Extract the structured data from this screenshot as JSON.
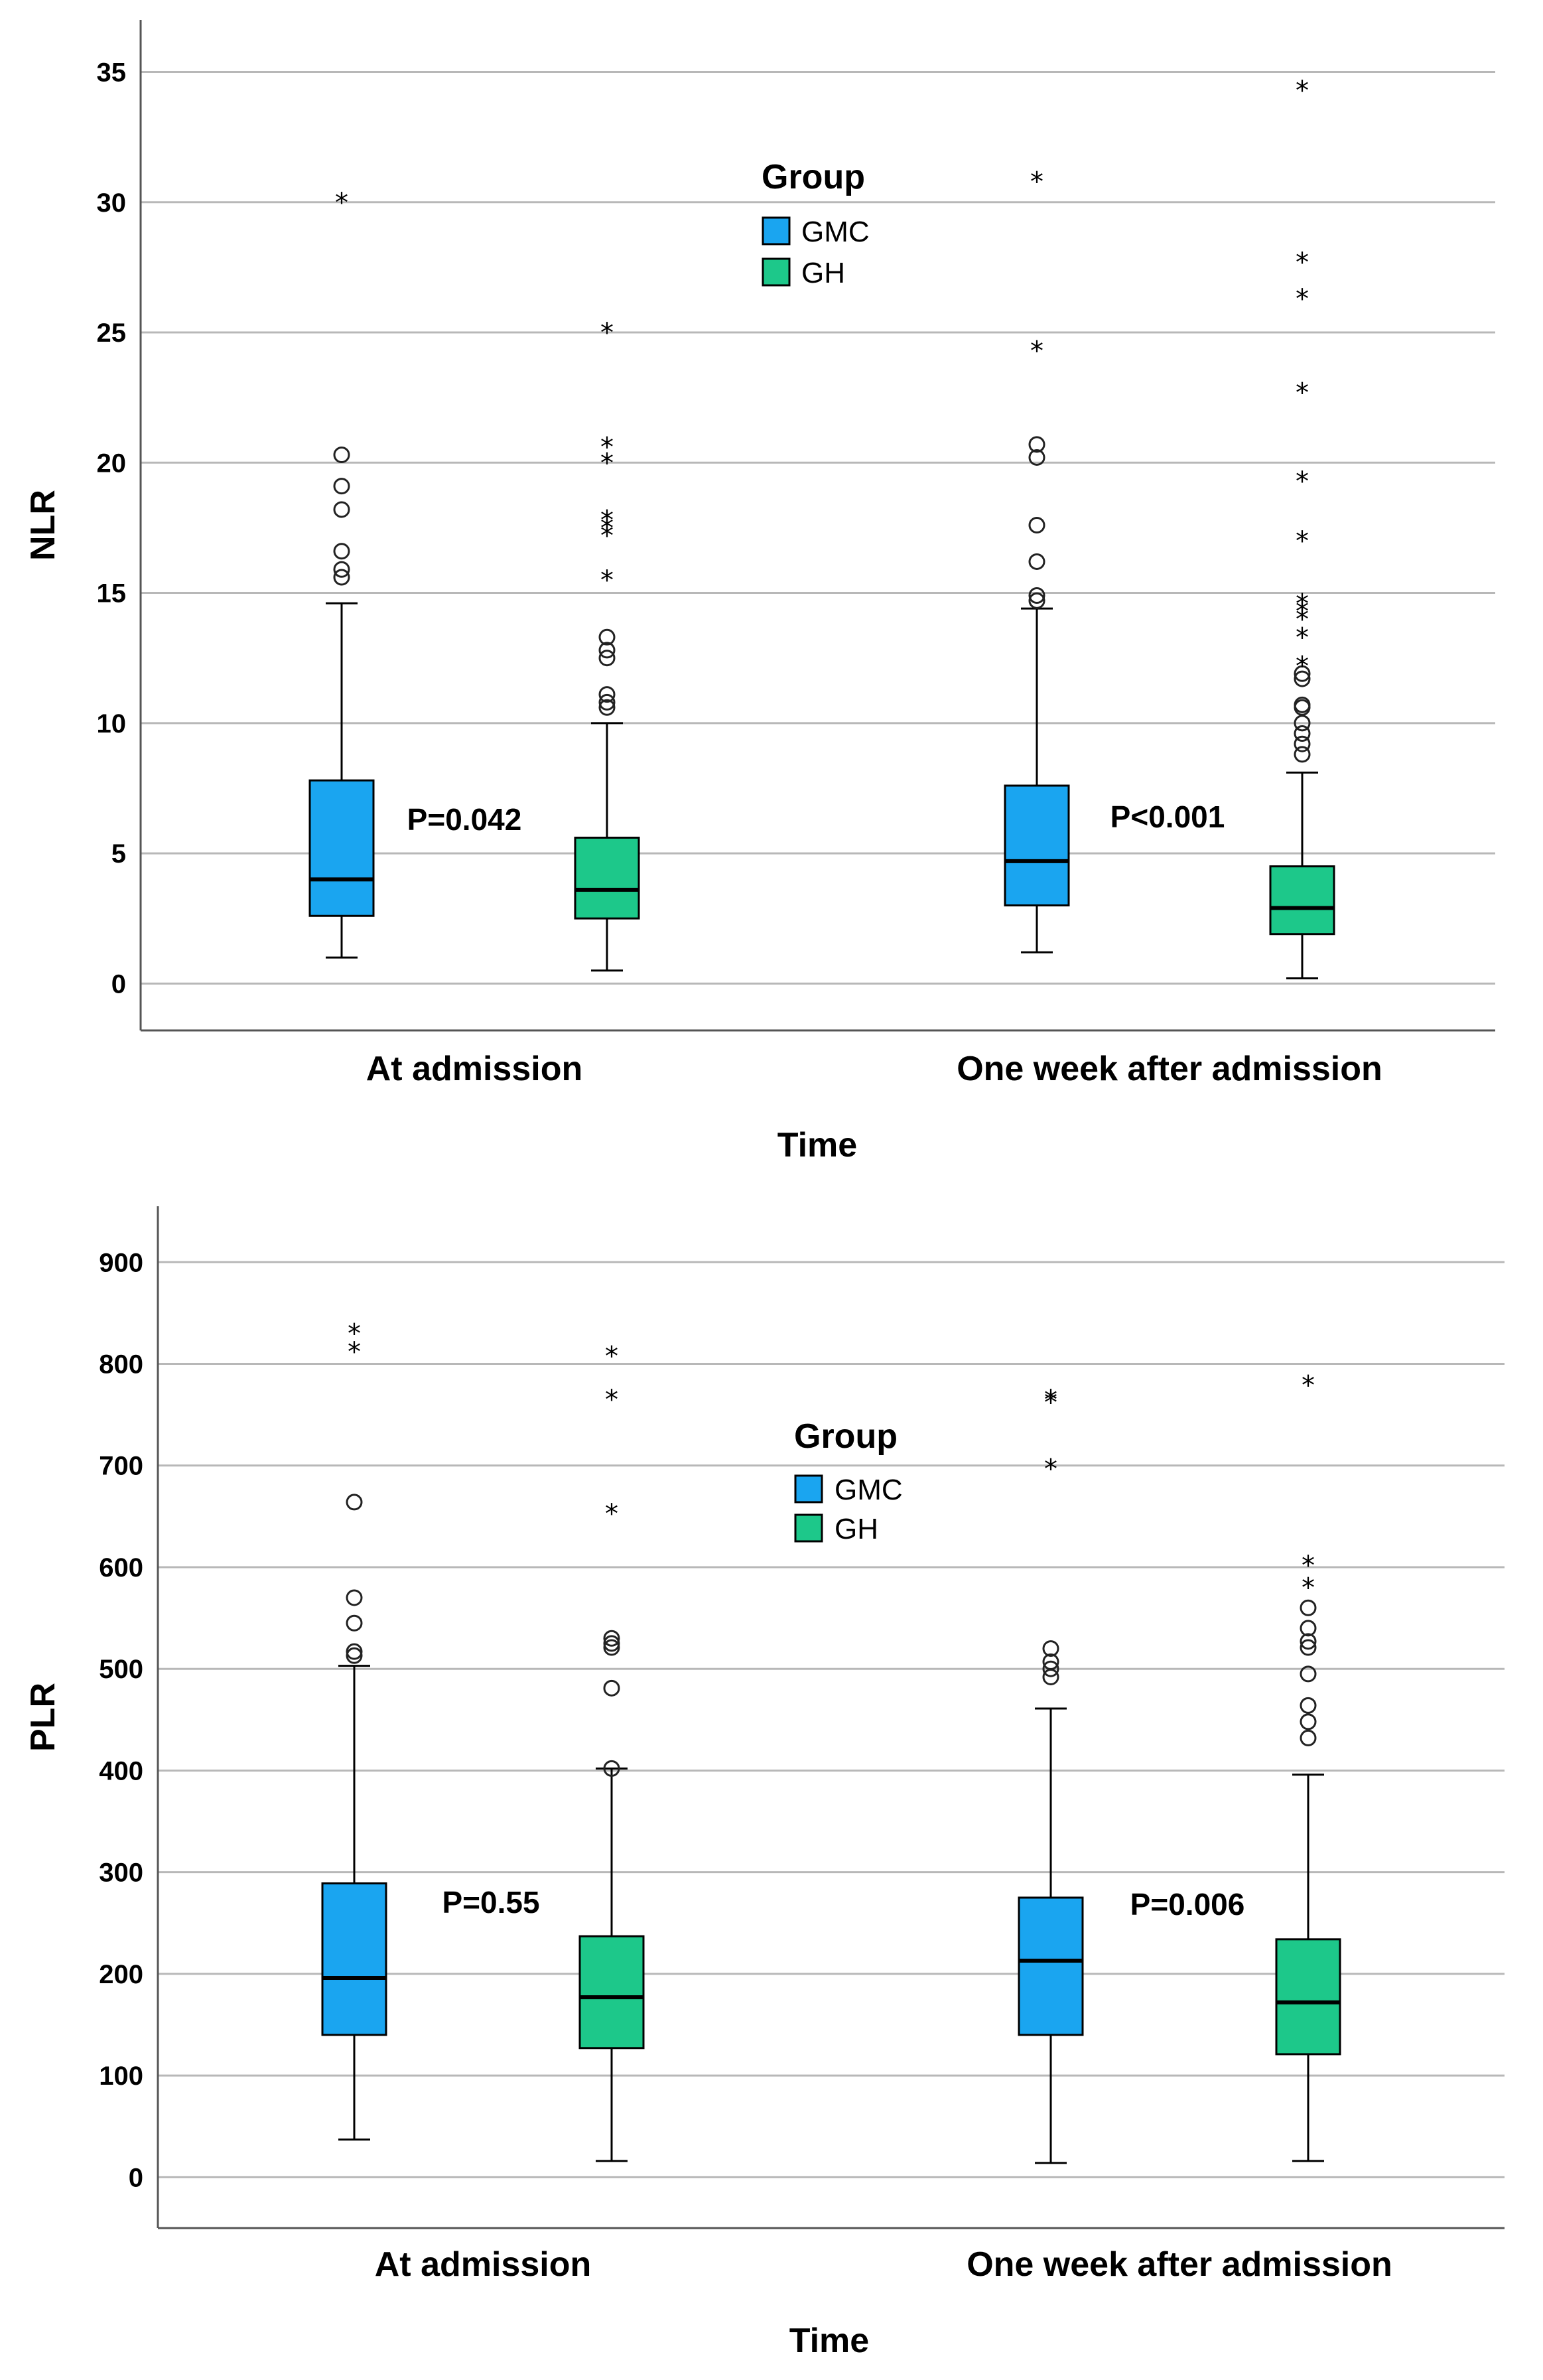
{
  "chart_data": [
    {
      "type": "boxplot",
      "ylabel": "NLR",
      "xlabel": "Time",
      "ylim": [
        -1.8,
        37
      ],
      "yticks": [
        0,
        5,
        10,
        15,
        20,
        25,
        30,
        35
      ],
      "grid": true,
      "categories": [
        "At admission",
        "One week after admission"
      ],
      "legend": {
        "title": "Group",
        "placement": "top-center",
        "entries": [
          {
            "name": "GMC",
            "color": "#1aa5f0"
          },
          {
            "name": "GH",
            "color": "#1dc88a"
          }
        ]
      },
      "series": [
        {
          "name": "GMC",
          "color": "#1aa5f0",
          "boxes": [
            {
              "category": "At admission",
              "whisker_low": 1.0,
              "q1": 2.6,
              "median": 4.0,
              "q3": 7.8,
              "whisker_high": 14.6,
              "outliers": [
                15.6,
                15.9,
                16.6,
                18.2,
                19.1,
                20.3
              ],
              "extremes": [
                30.0
              ]
            },
            {
              "category": "One week after admission",
              "whisker_low": 1.2,
              "q1": 3.0,
              "median": 4.7,
              "q3": 7.6,
              "whisker_high": 14.4,
              "outliers": [
                14.7,
                14.9,
                16.2,
                17.6,
                20.2,
                20.7
              ],
              "extremes": [
                24.3,
                30.8
              ]
            }
          ]
        },
        {
          "name": "GH",
          "color": "#1dc88a",
          "boxes": [
            {
              "category": "At admission",
              "whisker_low": 0.5,
              "q1": 2.5,
              "median": 3.6,
              "q3": 5.6,
              "whisker_high": 10.0,
              "outliers": [
                10.6,
                10.8,
                11.1,
                12.5,
                12.8,
                13.3
              ],
              "extremes": [
                15.5,
                17.2,
                17.5,
                17.8,
                20.0,
                20.6,
                25.0
              ]
            },
            {
              "category": "One week after admission",
              "whisker_low": 0.2,
              "q1": 1.9,
              "median": 2.9,
              "q3": 4.5,
              "whisker_high": 8.1,
              "outliers": [
                8.8,
                9.2,
                9.6,
                10.0,
                10.6,
                10.7,
                11.7,
                11.9
              ],
              "extremes": [
                12.2,
                13.3,
                14.0,
                14.3,
                14.6,
                17.0,
                19.3,
                22.7,
                26.3,
                27.7,
                34.3
              ]
            }
          ]
        }
      ],
      "annotations": [
        {
          "text": "P=0.042",
          "category": "At admission",
          "y": 5.9
        },
        {
          "text": "P<0.001",
          "category": "One week after admission",
          "y": 6.0
        }
      ]
    },
    {
      "type": "boxplot",
      "ylabel": "PLR",
      "xlabel": "Time",
      "ylim": [
        -50,
        955
      ],
      "yticks": [
        0,
        100,
        200,
        300,
        400,
        500,
        600,
        700,
        800,
        900
      ],
      "grid": true,
      "categories": [
        "At admission",
        "One week after admission"
      ],
      "legend": {
        "title": "Group",
        "placement": "top-center",
        "entries": [
          {
            "name": "GMC",
            "color": "#1aa5f0"
          },
          {
            "name": "GH",
            "color": "#1dc88a"
          }
        ]
      },
      "series": [
        {
          "name": "GMC",
          "color": "#1aa5f0",
          "boxes": [
            {
              "category": "At admission",
              "whisker_low": 37,
              "q1": 140,
              "median": 196,
              "q3": 289,
              "whisker_high": 503,
              "outliers": [
                513,
                517,
                545,
                570,
                664
              ],
              "extremes": [
                812,
                830
              ]
            },
            {
              "category": "One week after admission",
              "whisker_low": 14,
              "q1": 140,
              "median": 213,
              "q3": 275,
              "whisker_high": 461,
              "outliers": [
                492,
                500,
                507,
                520
              ],
              "extremes": [
                697,
                762,
                765
              ]
            }
          ]
        },
        {
          "name": "GH",
          "color": "#1dc88a",
          "boxes": [
            {
              "category": "At admission",
              "whisker_low": 16,
              "q1": 127,
              "median": 177,
              "q3": 237,
              "whisker_high": 402,
              "outliers": [
                402,
                481,
                521,
                525,
                530
              ],
              "extremes": [
                653,
                765,
                808
              ]
            },
            {
              "category": "One week after admission",
              "whisker_low": 16,
              "q1": 121,
              "median": 172,
              "q3": 234,
              "whisker_high": 396,
              "outliers": [
                432,
                448,
                464,
                495,
                521,
                527,
                540,
                560
              ],
              "extremes": [
                580,
                602,
                779
              ]
            }
          ]
        }
      ],
      "annotations": [
        {
          "text": "P=0.55",
          "category": "At admission",
          "y": 260
        },
        {
          "text": "P=0.006",
          "category": "One week after admission",
          "y": 258
        }
      ]
    }
  ]
}
